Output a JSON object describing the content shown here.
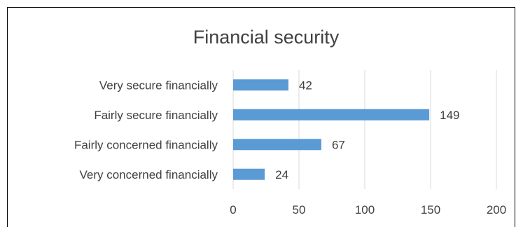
{
  "chart_data": {
    "type": "bar",
    "orientation": "horizontal",
    "title": "Financial security",
    "categories": [
      "Very secure financially",
      "Fairly secure financially",
      "Fairly concerned financially",
      "Very concerned financially"
    ],
    "values": [
      42,
      149,
      67,
      24
    ],
    "xlabel": "",
    "ylabel": "",
    "xlim": [
      0,
      200
    ],
    "x_ticks": [
      "0",
      "50",
      "100",
      "150",
      "200"
    ],
    "grid": "vertical",
    "legend": "none",
    "bar_color": "#5b9bd5",
    "grid_color": "#d9d9d9",
    "text_color": "#404040"
  }
}
